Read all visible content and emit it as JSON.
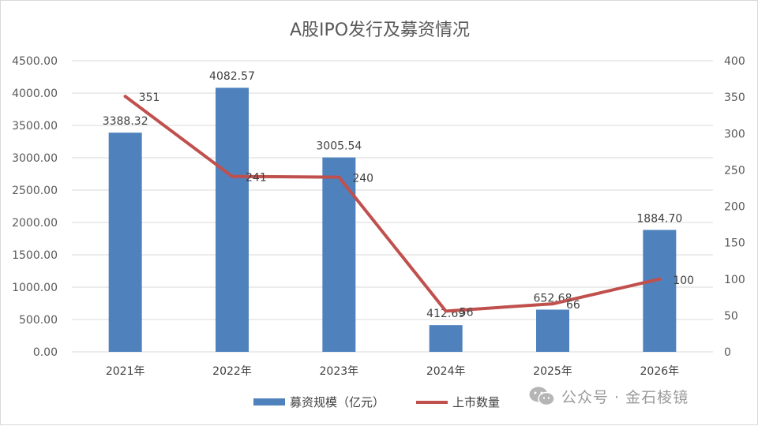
{
  "chart_data": {
    "type": "bar+line",
    "title": "A股IPO发行及募资情况",
    "categories": [
      "2021年",
      "2022年",
      "2023年",
      "2024年",
      "2025年",
      "2026年"
    ],
    "bar_series": {
      "name": "募资规模（亿元）",
      "values": [
        3388.32,
        4082.57,
        3005.54,
        412.69,
        652.68,
        1884.7
      ],
      "labels": [
        "3388.32",
        "4082.57",
        "3005.54",
        "412.69",
        "652.68",
        "1884.70"
      ],
      "color": "#4f81bd"
    },
    "line_series": {
      "name": "上市数量",
      "values": [
        351,
        241,
        240,
        56,
        66,
        100
      ],
      "labels": [
        "351",
        "241",
        "240",
        "56",
        "66",
        "100"
      ],
      "color": "#c0504d"
    },
    "y_left": {
      "ylim": [
        0,
        4500
      ],
      "ticks": [
        "4500.00",
        "4000.00",
        "3500.00",
        "3000.00",
        "2500.00",
        "2000.00",
        "1500.00",
        "1000.00",
        "500.00",
        "0.00"
      ]
    },
    "y_right": {
      "ylim": [
        0,
        400
      ],
      "ticks": [
        "400",
        "350",
        "300",
        "250",
        "200",
        "150",
        "100",
        "50",
        "0"
      ]
    },
    "grid": true,
    "legend": "bottom"
  },
  "watermark": {
    "text": "公众号 · 金石棱镜",
    "icon": "wechat-icon"
  }
}
